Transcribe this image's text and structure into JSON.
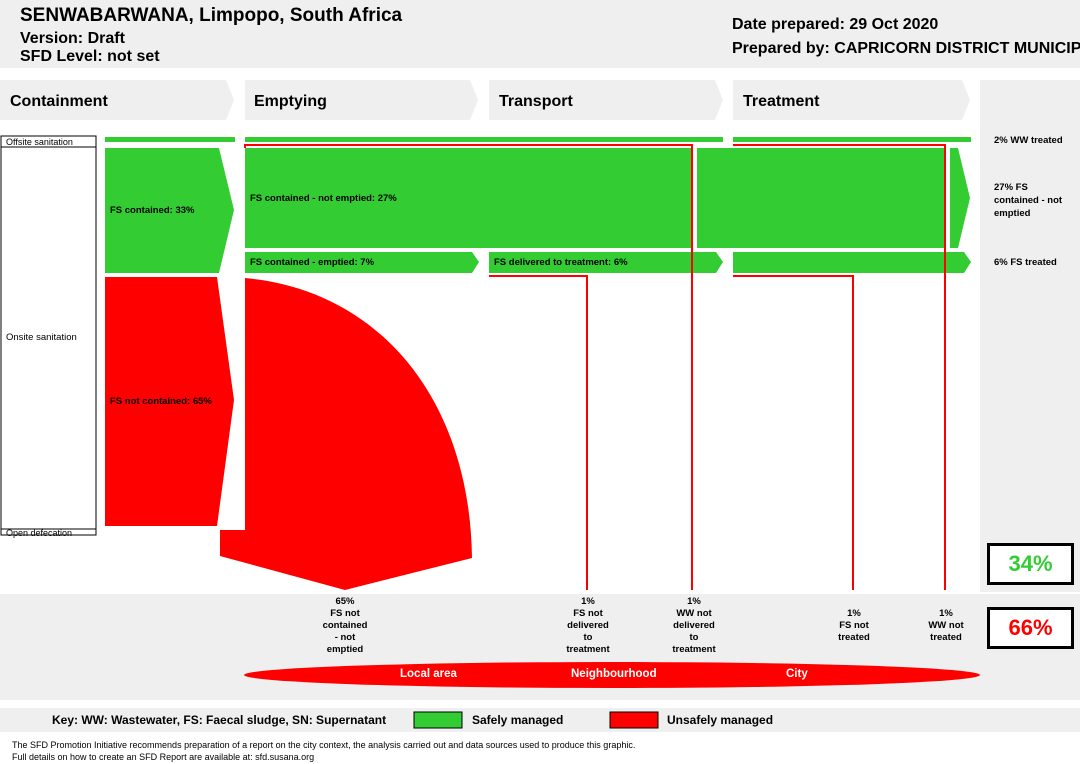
{
  "header": {
    "title": "SENWABARWANA, Limpopo, South Africa",
    "version": "Version: Draft",
    "sfd_level": "SFD Level: not set",
    "date_prepared": "Date prepared: 29 Oct 2020",
    "prepared_by": "Prepared by: CAPRICORN DISTRICT MUNICIP"
  },
  "stages": [
    "Containment",
    "Emptying",
    "Transport",
    "Treatment"
  ],
  "row_labels": {
    "offsite": "Offsite sanitation",
    "onsite": "Onsite sanitation",
    "open_defecation": "Open defecation"
  },
  "flows": {
    "fs_contained": "FS contained: 33%",
    "fs_not_contained": "FS not contained: 65%",
    "fs_not_emptied": "FS contained - not emptied: 27%",
    "fs_emptied": "FS contained - emptied: 7%",
    "fs_delivered": "FS delivered to treatment: 6%"
  },
  "outcomes": {
    "ww_treated": "2% WW treated",
    "fs_not_emptied_line1": "27% FS",
    "fs_not_emptied_line2": "contained - not",
    "fs_not_emptied_line3": "emptied",
    "fs_treated": "6% FS treated"
  },
  "losses": [
    {
      "lines": [
        "65%",
        "FS not",
        "contained",
        "- not",
        "emptied"
      ]
    },
    {
      "lines": [
        "1%",
        "FS not",
        "delivered",
        "to",
        "treatment"
      ]
    },
    {
      "lines": [
        "1%",
        "WW not",
        "delivered",
        "to",
        "treatment"
      ]
    },
    {
      "lines": [
        "1%",
        "FS not",
        "treated"
      ]
    },
    {
      "lines": [
        "1%",
        "WW not",
        "treated"
      ]
    }
  ],
  "summary": {
    "safe_pct": "34%",
    "unsafe_pct": "66%"
  },
  "areas": [
    "Local area",
    "Neighbourhood",
    "City"
  ],
  "key": {
    "text": "Key: WW: Wastewater, FS: Faecal sludge, SN: Supernatant",
    "safe": "Safely managed",
    "unsafe": "Unsafely managed"
  },
  "footer": {
    "line1": "The SFD Promotion Initiative recommends preparation of a report on the city context, the analysis carried out and data sources used to produce this graphic.",
    "line2": "Full details on how to create an SFD Report are available at: sfd.susana.org"
  },
  "colors": {
    "safe": "#33cc33",
    "unsafe": "#ff0000",
    "panel": "#efefef",
    "safe_text": "#33cc33",
    "unsafe_text": "#ff0000"
  }
}
